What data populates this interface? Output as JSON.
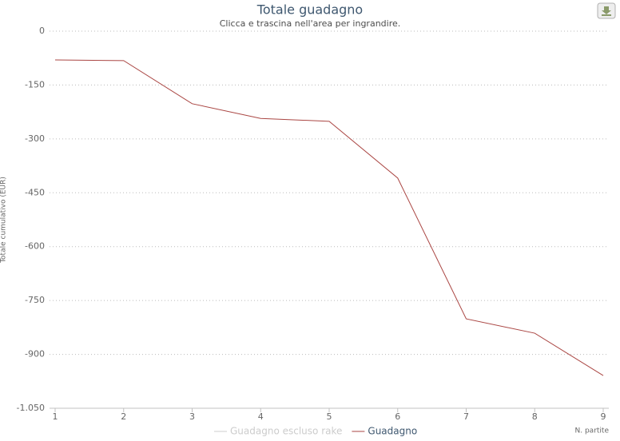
{
  "chart_data": {
    "type": "line",
    "title": "Totale guadagno",
    "subtitle": "Clicca e trascina nell'area per ingrandire.",
    "x_label": "N. partite",
    "y_label": "Totale cumulativo (EUR)",
    "x": [
      1,
      2,
      3,
      4,
      5,
      6,
      7,
      8,
      9
    ],
    "series": [
      {
        "name": "Guadagno escluso rake",
        "color": "#cccccc",
        "visible": false
      },
      {
        "name": "Guadagno",
        "color": "#aa4643",
        "values": [
          -80,
          -82,
          -202,
          -243,
          -251,
          -409,
          -801,
          -841,
          -959
        ]
      }
    ],
    "xlim": [
      1,
      9
    ],
    "xticks": [
      1,
      2,
      3,
      4,
      5,
      6,
      7,
      8,
      9
    ],
    "ylim": [
      -1050,
      0
    ],
    "yticks": [
      0,
      -150,
      -300,
      -450,
      -600,
      -750,
      -900,
      {
        "value": -1050,
        "label": "-1.050"
      }
    ],
    "grid": true
  }
}
